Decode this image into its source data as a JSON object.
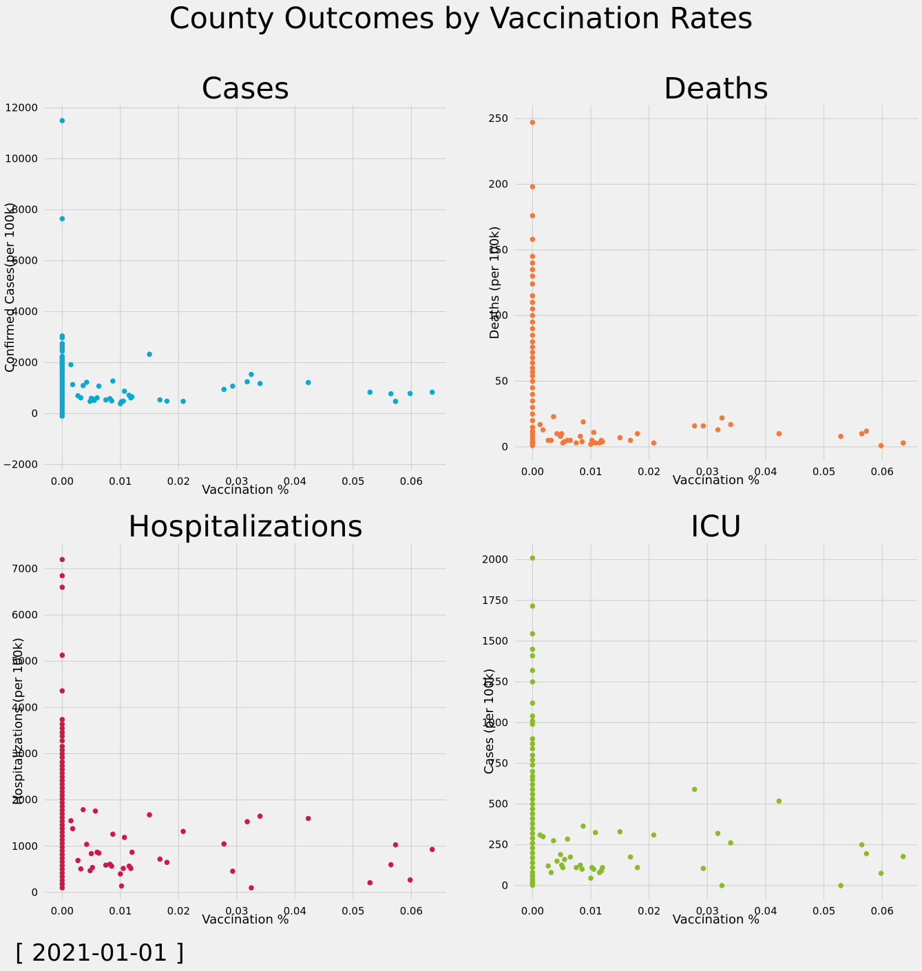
{
  "title": "County Outcomes by Vaccination Rates",
  "date_label": "[ 2021-01-01 ]",
  "colors": {
    "background": "#f0f0f0",
    "grid": "#cbcbcb",
    "cases": "#0da8d0",
    "deaths": "#f0793b",
    "hosp": "#cb1a48",
    "icu": "#8abb2a"
  },
  "chart_data": [
    {
      "type": "scatter",
      "title": "Cases",
      "xlabel": "Vaccination %",
      "ylabel": "Confirmed Cases(per 100k)",
      "color": "#0da8d0",
      "xlim": [
        -0.003,
        0.066
      ],
      "ylim": [
        -2200,
        12100
      ],
      "xticks": [
        0.0,
        0.01,
        0.02,
        0.03,
        0.04,
        0.05,
        0.06
      ],
      "xtick_labels": [
        "0.00",
        "0.01",
        "0.02",
        "0.03",
        "0.04",
        "0.05",
        "0.06"
      ],
      "yticks": [
        -2000,
        0,
        2000,
        4000,
        6000,
        8000,
        10000,
        12000
      ],
      "ytick_labels": [
        "−2000",
        "0",
        "2000",
        "4000",
        "6000",
        "8000",
        "10000",
        "12000"
      ],
      "grid": true,
      "points": {
        "x": [
          0,
          0,
          0,
          0,
          0,
          0,
          0,
          0,
          0,
          0,
          0,
          0,
          0,
          0,
          0,
          0,
          0,
          0,
          0,
          0,
          0,
          0,
          0,
          0,
          0,
          0,
          0,
          0,
          0,
          0,
          0,
          0,
          0,
          0,
          0,
          0,
          0,
          0,
          0.0015,
          0.0018,
          0.0027,
          0.0032,
          0.0036,
          0.0042,
          0.0048,
          0.005,
          0.0052,
          0.0055,
          0.006,
          0.0063,
          0.0075,
          0.0082,
          0.0085,
          0.0087,
          0.01,
          0.0102,
          0.0105,
          0.0107,
          0.0115,
          0.0118,
          0.012,
          0.015,
          0.0168,
          0.018,
          0.0208,
          0.0278,
          0.0293,
          0.0318,
          0.0325,
          0.034,
          0.0423,
          0.0529,
          0.0565,
          0.0573,
          0.0598,
          0.0636
        ],
        "y": [
          11500,
          7650,
          3050,
          2980,
          2750,
          2650,
          2550,
          2450,
          2250,
          2200,
          2150,
          2100,
          2050,
          2000,
          1950,
          1900,
          1850,
          1800,
          1750,
          1700,
          1600,
          1500,
          1400,
          1300,
          1200,
          1100,
          1000,
          900,
          800,
          700,
          600,
          500,
          400,
          300,
          200,
          100,
          0,
          -100,
          1920,
          1140,
          700,
          620,
          1100,
          1230,
          480,
          600,
          580,
          520,
          620,
          1080,
          540,
          590,
          500,
          1280,
          390,
          470,
          490,
          880,
          720,
          620,
          660,
          2330,
          540,
          490,
          480,
          950,
          1080,
          1250,
          1540,
          1180,
          1220,
          840,
          780,
          480,
          790,
          840
        ]
      }
    },
    {
      "type": "scatter",
      "title": "Deaths",
      "xlabel": "Vaccination %",
      "ylabel": "Deaths (per 100k)",
      "color": "#f0793b",
      "xlim": [
        -0.003,
        0.066
      ],
      "ylim": [
        -10,
        260
      ],
      "xticks": [
        0.0,
        0.01,
        0.02,
        0.03,
        0.04,
        0.05,
        0.06
      ],
      "xtick_labels": [
        "0.00",
        "0.01",
        "0.02",
        "0.03",
        "0.04",
        "0.05",
        "0.06"
      ],
      "yticks": [
        0,
        50,
        100,
        150,
        200,
        250
      ],
      "ytick_labels": [
        "0",
        "50",
        "100",
        "150",
        "200",
        "250"
      ],
      "grid": true,
      "points": {
        "x": [
          0,
          0,
          0,
          0,
          0,
          0,
          0,
          0,
          0,
          0,
          0,
          0,
          0,
          0,
          0,
          0,
          0,
          0,
          0,
          0,
          0,
          0,
          0,
          0,
          0,
          0,
          0,
          0,
          0,
          0,
          0,
          0,
          0,
          0,
          0,
          0,
          0,
          0,
          0,
          0,
          0.0013,
          0.0018,
          0.0027,
          0.0032,
          0.0036,
          0.0042,
          0.0048,
          0.005,
          0.0052,
          0.0055,
          0.006,
          0.0065,
          0.0075,
          0.0082,
          0.0085,
          0.0087,
          0.01,
          0.0102,
          0.0105,
          0.0108,
          0.0115,
          0.0118,
          0.012,
          0.015,
          0.0168,
          0.018,
          0.0208,
          0.0278,
          0.0293,
          0.0318,
          0.0325,
          0.034,
          0.0423,
          0.0529,
          0.0565,
          0.0573,
          0.0598,
          0.0636
        ],
        "y": [
          247,
          198,
          176,
          158,
          145,
          140,
          135,
          130,
          124,
          115,
          110,
          105,
          100,
          95,
          90,
          85,
          80,
          76,
          72,
          68,
          64,
          60,
          57,
          54,
          50,
          45,
          40,
          35,
          30,
          25,
          20,
          15,
          12,
          10,
          8,
          6,
          4,
          3,
          2,
          1,
          17,
          13,
          5,
          5,
          23,
          10,
          8,
          10,
          3,
          4,
          5,
          5,
          3,
          8,
          4,
          19,
          2,
          5,
          11,
          3,
          3,
          5,
          4,
          7,
          5,
          10,
          3,
          16,
          16,
          13,
          22,
          17,
          10,
          8,
          10,
          12,
          1,
          3
        ]
      }
    },
    {
      "type": "scatter",
      "title": "Hospitalizations",
      "xlabel": "Vaccination %",
      "ylabel": "Hospitalizations (per 100k)",
      "color": "#cb1a48",
      "xlim": [
        -0.003,
        0.066
      ],
      "ylim": [
        -150,
        7550
      ],
      "xticks": [
        0.0,
        0.01,
        0.02,
        0.03,
        0.04,
        0.05,
        0.06
      ],
      "xtick_labels": [
        "0.00",
        "0.01",
        "0.02",
        "0.03",
        "0.04",
        "0.05",
        "0.06"
      ],
      "yticks": [
        0,
        1000,
        2000,
        3000,
        4000,
        5000,
        6000,
        7000
      ],
      "ytick_labels": [
        "0",
        "1000",
        "2000",
        "3000",
        "4000",
        "5000",
        "6000",
        "7000"
      ],
      "grid": true,
      "points": {
        "x": [
          0,
          0,
          0,
          0,
          0,
          0,
          0,
          0,
          0,
          0,
          0,
          0,
          0,
          0,
          0,
          0,
          0,
          0,
          0,
          0,
          0,
          0,
          0,
          0,
          0,
          0,
          0,
          0,
          0,
          0,
          0,
          0,
          0,
          0,
          0,
          0,
          0,
          0,
          0,
          0,
          0,
          0,
          0,
          0,
          0,
          0,
          0,
          0,
          0,
          0,
          0.0015,
          0.0018,
          0.0027,
          0.0032,
          0.0036,
          0.0042,
          0.0048,
          0.005,
          0.0052,
          0.0057,
          0.006,
          0.0063,
          0.0075,
          0.0082,
          0.0085,
          0.0087,
          0.01,
          0.0102,
          0.0105,
          0.0107,
          0.0115,
          0.0118,
          0.012,
          0.015,
          0.0168,
          0.018,
          0.0208,
          0.0278,
          0.0293,
          0.0318,
          0.0325,
          0.034,
          0.0423,
          0.0529,
          0.0565,
          0.0573,
          0.0598,
          0.0636
        ],
        "y": [
          7200,
          6850,
          6600,
          5130,
          4360,
          3740,
          3640,
          3550,
          3460,
          3380,
          3280,
          3160,
          3080,
          3000,
          2920,
          2820,
          2740,
          2660,
          2580,
          2500,
          2420,
          2340,
          2260,
          2180,
          2100,
          2020,
          1940,
          1860,
          1780,
          1700,
          1620,
          1540,
          1460,
          1380,
          1300,
          1220,
          1140,
          1060,
          980,
          900,
          820,
          740,
          660,
          580,
          500,
          420,
          340,
          260,
          180,
          100,
          1550,
          1380,
          690,
          510,
          1790,
          1040,
          470,
          840,
          540,
          1760,
          870,
          850,
          590,
          610,
          570,
          1260,
          400,
          140,
          520,
          1190,
          570,
          520,
          870,
          1680,
          720,
          650,
          1320,
          1050,
          460,
          1530,
          100,
          1650,
          1600,
          210,
          600,
          1030,
          270,
          930
        ]
      }
    },
    {
      "type": "scatter",
      "title": "ICU",
      "xlabel": "Vaccination %",
      "ylabel": "Cases (per 100k)",
      "color": "#8abb2a",
      "xlim": [
        -0.003,
        0.066
      ],
      "ylim": [
        -85,
        2100
      ],
      "xticks": [
        0.0,
        0.01,
        0.02,
        0.03,
        0.04,
        0.05,
        0.06
      ],
      "xtick_labels": [
        "0.00",
        "0.01",
        "0.02",
        "0.03",
        "0.04",
        "0.05",
        "0.06"
      ],
      "yticks": [
        0,
        250,
        500,
        750,
        1000,
        1250,
        1500,
        1750,
        2000
      ],
      "ytick_labels": [
        "0",
        "250",
        "500",
        "750",
        "1000",
        "1250",
        "1500",
        "1750",
        "2000"
      ],
      "grid": true,
      "points": {
        "x": [
          0,
          0,
          0,
          0,
          0,
          0,
          0,
          0,
          0,
          0,
          0,
          0,
          0,
          0,
          0,
          0,
          0,
          0,
          0,
          0,
          0,
          0,
          0,
          0,
          0,
          0,
          0,
          0,
          0,
          0,
          0,
          0,
          0,
          0,
          0,
          0,
          0,
          0,
          0,
          0,
          0,
          0,
          0,
          0,
          0,
          0,
          0.0013,
          0.0018,
          0.0027,
          0.0032,
          0.0036,
          0.0042,
          0.0048,
          0.005,
          0.0052,
          0.0055,
          0.006,
          0.0065,
          0.0075,
          0.0082,
          0.0085,
          0.0087,
          0.01,
          0.0102,
          0.0105,
          0.0108,
          0.0115,
          0.0118,
          0.012,
          0.015,
          0.0168,
          0.018,
          0.0208,
          0.0278,
          0.0293,
          0.0318,
          0.0325,
          0.034,
          0.0423,
          0.0529,
          0.0565,
          0.0573,
          0.0598,
          0.0636
        ],
        "y": [
          2010,
          1715,
          1545,
          1450,
          1410,
          1320,
          1250,
          1120,
          1040,
          1010,
          990,
          900,
          870,
          840,
          800,
          770,
          740,
          700,
          670,
          650,
          620,
          590,
          560,
          530,
          500,
          470,
          440,
          410,
          380,
          350,
          320,
          290,
          260,
          230,
          200,
          170,
          140,
          110,
          80,
          60,
          40,
          25,
          15,
          10,
          5,
          2,
          310,
          300,
          120,
          80,
          275,
          150,
          190,
          125,
          110,
          160,
          285,
          175,
          110,
          125,
          100,
          365,
          45,
          110,
          100,
          325,
          80,
          90,
          110,
          330,
          175,
          110,
          310,
          590,
          105,
          320,
          0,
          262,
          518,
          0,
          250,
          195,
          75,
          178
        ]
      }
    }
  ]
}
